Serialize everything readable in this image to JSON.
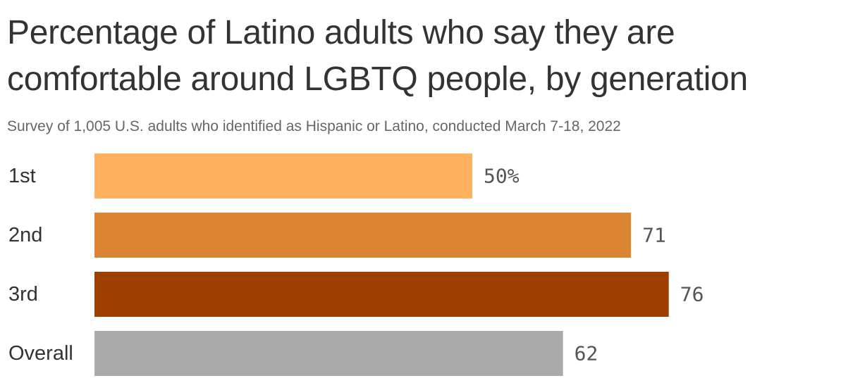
{
  "chart_data": {
    "type": "bar",
    "orientation": "horizontal",
    "title": "Percentage of Latino adults who say they are comfortable around LGBTQ people, by generation",
    "subtitle": "Survey of 1,005 U.S. adults who identified as Hispanic or Latino, conducted March 7-18, 2022",
    "categories": [
      "1st",
      "2nd",
      "3rd",
      "Overall"
    ],
    "values": [
      50,
      71,
      76,
      62
    ],
    "value_labels": [
      "50%",
      "71",
      "76",
      "62"
    ],
    "bar_colors": [
      "#ffb160",
      "#db8431",
      "#9c3f00",
      "#aaaaaa"
    ],
    "xlim": [
      0,
      100
    ],
    "xlabel": "",
    "ylabel": "",
    "grid": false,
    "legend": "none"
  }
}
